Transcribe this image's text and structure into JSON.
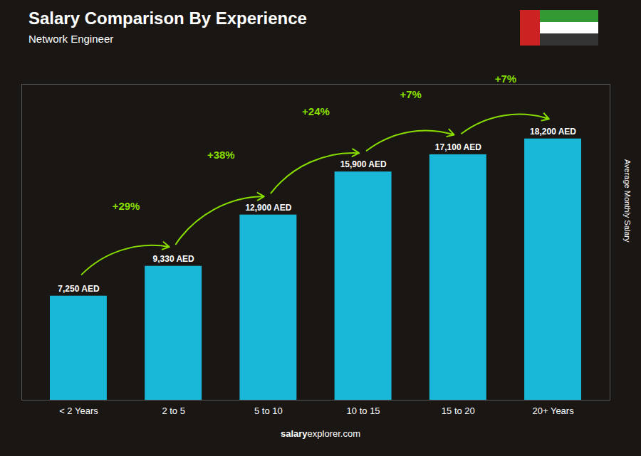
{
  "chart_data": {
    "type": "bar",
    "title": "Salary Comparison By Experience",
    "subtitle": "Network Engineer",
    "ylabel": "Average Monthly Salary",
    "categories": [
      "< 2 Years",
      "2 to 5",
      "5 to 10",
      "10 to 15",
      "15 to 20",
      "20+ Years"
    ],
    "values": [
      7250,
      9330,
      12900,
      15900,
      17100,
      18200
    ],
    "value_labels": [
      "7,250 AED",
      "9,330 AED",
      "12,900 AED",
      "15,900 AED",
      "17,100 AED",
      "18,200 AED"
    ],
    "data_labels": true,
    "color": "#1ab8d8",
    "ylim": [
      0,
      22000
    ],
    "tick_labels": "x",
    "annotations": [
      {
        "text": "+29%",
        "color": "#88dd00"
      },
      {
        "text": "+38%",
        "color": "#88dd00"
      },
      {
        "text": "+24%",
        "color": "#88dd00"
      },
      {
        "text": "+7%",
        "color": "#88dd00"
      },
      {
        "text": "+7%",
        "color": "#88dd00"
      }
    ],
    "footer": [
      "salary",
      "explorer.com"
    ]
  }
}
